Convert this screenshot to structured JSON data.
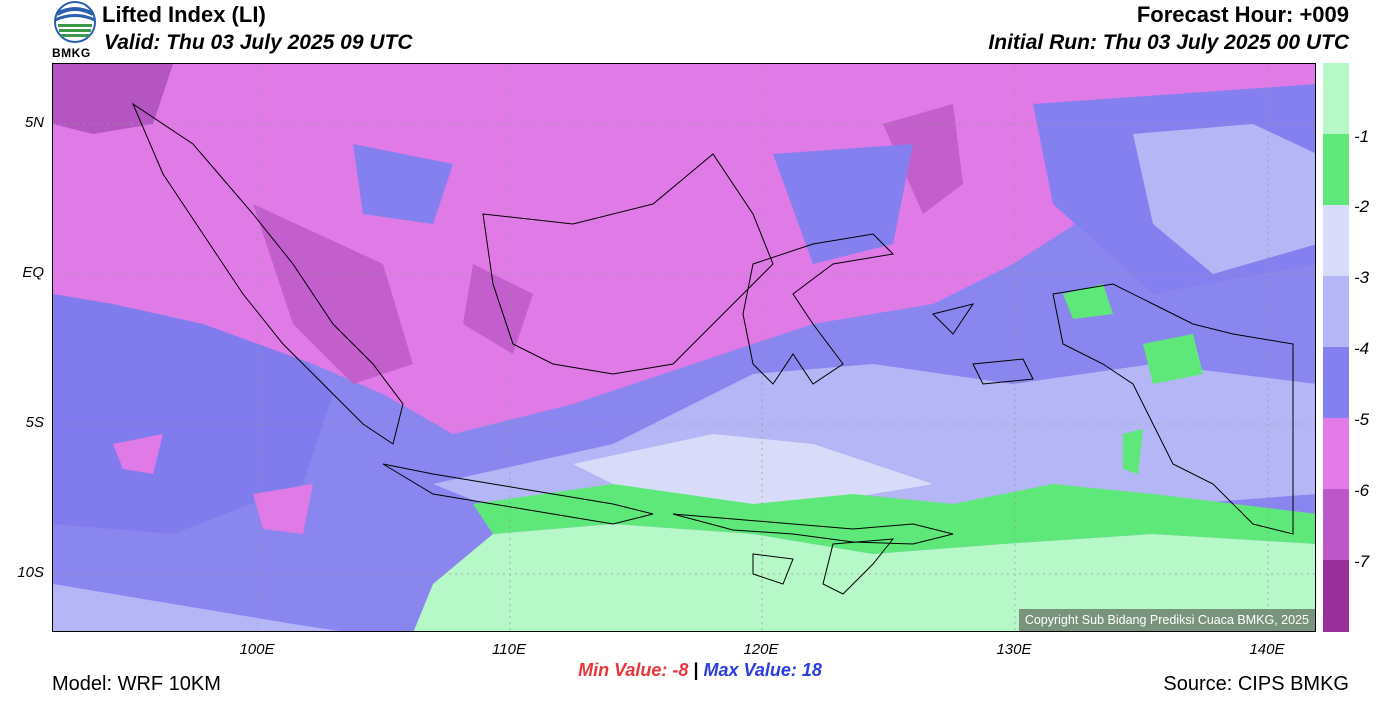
{
  "header": {
    "title": "Lifted Index (LI)",
    "valid": "Valid: Thu 03 July 2025 09 UTC",
    "forecast_hour": "Forecast Hour: +009",
    "initial_run": "Initial Run: Thu 03 July 2025 00 UTC",
    "logo_text": "BMKG"
  },
  "axes": {
    "lat_labels": [
      "5N",
      "EQ",
      "5S",
      "10S"
    ],
    "lon_labels": [
      "100E",
      "110E",
      "120E",
      "130E",
      "140E"
    ]
  },
  "colorbar": {
    "labels": [
      "-1",
      "-2",
      "-3",
      "-4",
      "-5",
      "-6",
      "-7"
    ],
    "colors": [
      "#b6f8c8",
      "#5ee87a",
      "#d9dcf8",
      "#b4b6f6",
      "#8580ef",
      "#e27ae8",
      "#bd57c9",
      "#962f9a"
    ]
  },
  "map": {
    "background_color": "#8a86f0",
    "copyright": "Copyright Sub Bidang Prediksi Cuaca BMKG, 2025"
  },
  "footer": {
    "min_label": "Min Value:  -8",
    "separator": "|",
    "max_label": "Max Value:  18",
    "model": "Model: WRF 10KM",
    "source": "Source: CIPS BMKG"
  }
}
